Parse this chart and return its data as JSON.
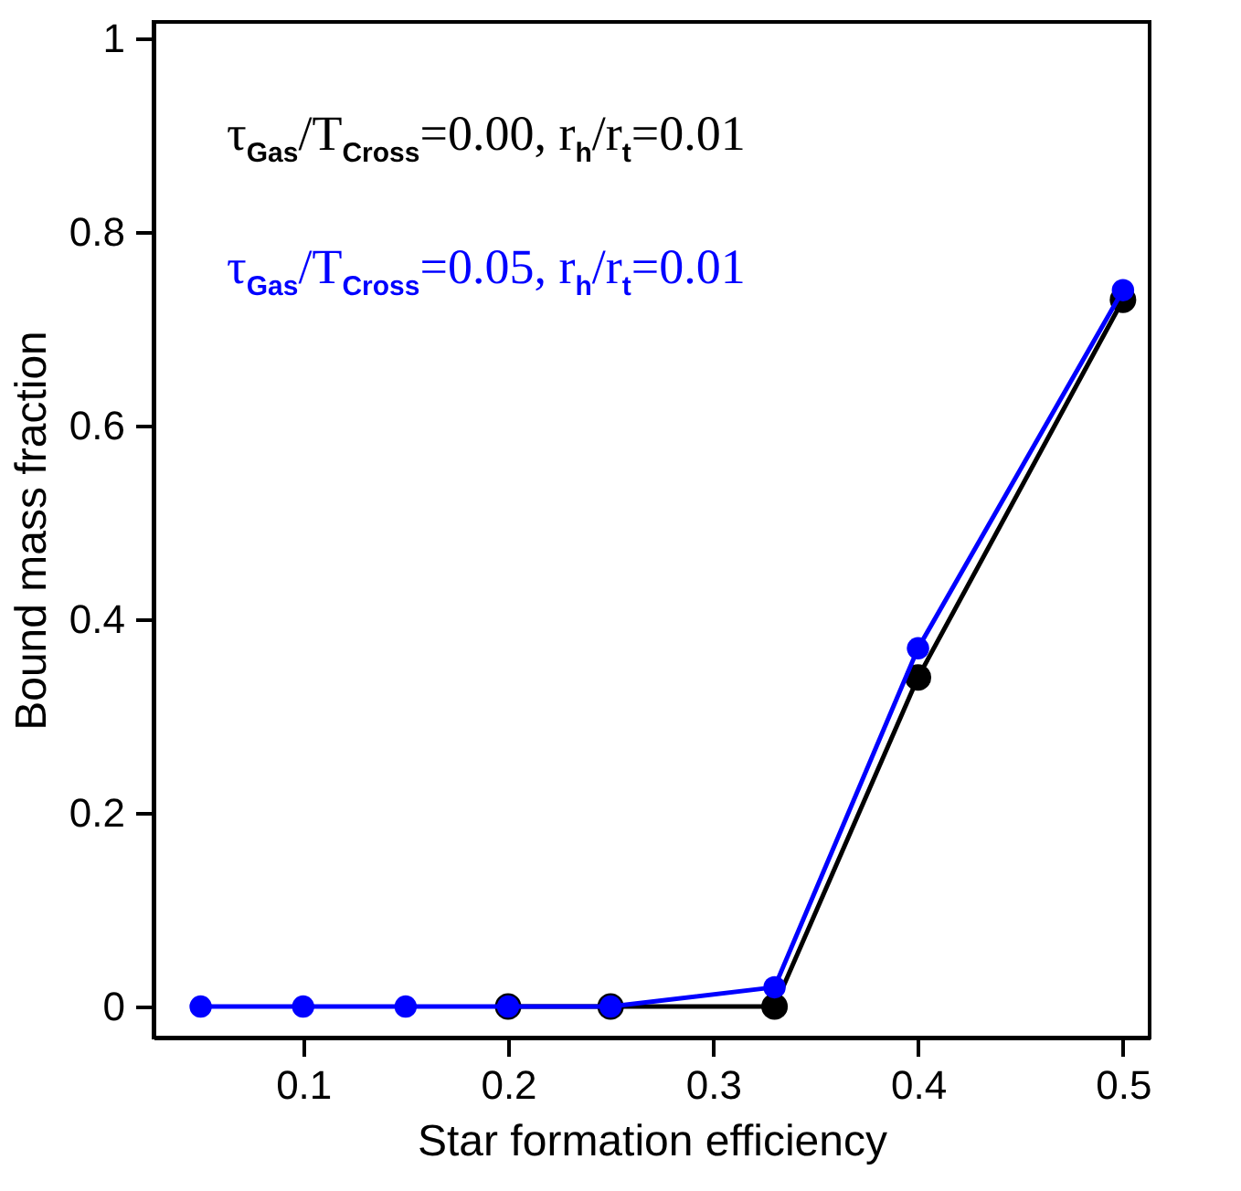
{
  "chart_data": {
    "type": "line",
    "xlabel": "Star formation efficiency",
    "ylabel": "Bound mass fraction",
    "xlim": [
      0.027,
      0.513
    ],
    "xticks": [
      0.1,
      0.2,
      0.3,
      0.4,
      0.5
    ],
    "ylim": [
      -0.032,
      1.017
    ],
    "yticks": [
      0,
      0.2,
      0.4,
      0.6,
      0.8,
      1
    ],
    "x": [
      0.05,
      0.1,
      0.15,
      0.2,
      0.25,
      0.33,
      0.4,
      0.5
    ],
    "series": [
      {
        "name": "τ$_{Gas}$/T$_{Cross}$=0.00, r$_{h}$/r$_{t}$=0.01",
        "color": "#000000",
        "values": [
          null,
          null,
          null,
          0,
          0,
          0,
          0.34,
          0.73
        ]
      },
      {
        "name": "τ$_{Gas}$/T$_{Cross}$=0.05, r$_{h}$/r$_{t}$=0.01",
        "color": "#0000ff",
        "values": [
          0,
          0,
          0,
          0,
          0,
          0.02,
          0.37,
          0.74
        ]
      }
    ],
    "marker": "circle",
    "line_style": "solid",
    "grid": false
  }
}
